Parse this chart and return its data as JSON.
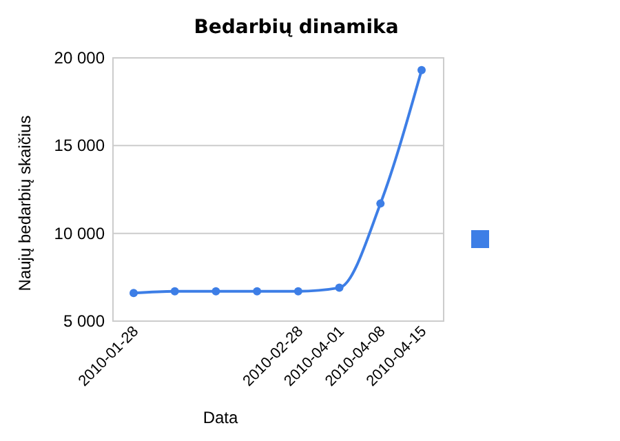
{
  "chart_data": {
    "type": "line",
    "title": "Bedarbių dinamika",
    "xlabel": "Data",
    "ylabel": "Naujų bedarbių skaičius",
    "categories": [
      "2010-01-28",
      null,
      null,
      null,
      "2010-02-28",
      "2010-04-01",
      "2010-04-08",
      "2010-04-15"
    ],
    "series": [
      {
        "color": "#3d7ee6",
        "values": [
          6600,
          6700,
          6700,
          6700,
          6700,
          6900,
          11700,
          19300
        ]
      }
    ],
    "ylim": [
      5000,
      20000
    ],
    "yticks": [
      {
        "value": 5000,
        "label": "5 000"
      },
      {
        "value": 10000,
        "label": "10 000"
      },
      {
        "value": 15000,
        "label": "15 000"
      },
      {
        "value": 20000,
        "label": "20 000"
      }
    ],
    "grid": "y",
    "marker": "circle"
  }
}
